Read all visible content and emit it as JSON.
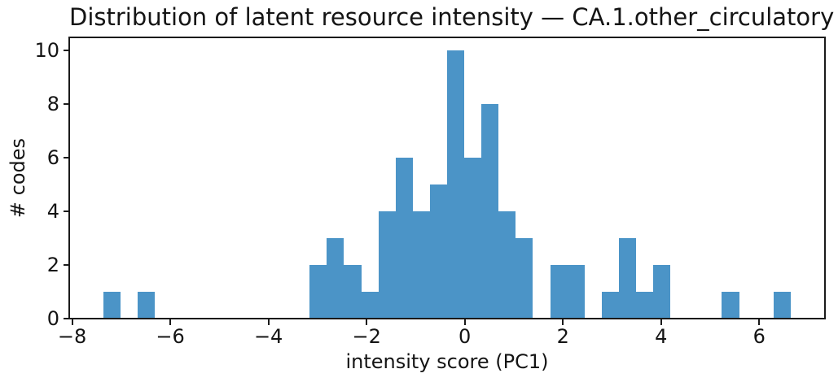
{
  "chart_data": {
    "type": "bar",
    "subtype": "histogram",
    "title": "Distribution of latent resource intensity — CA.1.other_circulatory",
    "xlabel": "intensity score (PC1)",
    "ylabel": "# codes",
    "bar_color": "#4b94c7",
    "bin_start": -7.36,
    "bin_width": 0.35,
    "counts": [
      1,
      0,
      1,
      0,
      0,
      0,
      0,
      0,
      0,
      0,
      0,
      0,
      2,
      3,
      2,
      1,
      4,
      6,
      4,
      5,
      10,
      6,
      8,
      4,
      3,
      0,
      2,
      2,
      0,
      1,
      3,
      1,
      2,
      0,
      0,
      0,
      1,
      0,
      0,
      1
    ],
    "total_codes": 73,
    "xlim": [
      -8.06,
      7.34
    ],
    "ylim": [
      0,
      10.5
    ],
    "xticks": [
      -8,
      -6,
      -4,
      -2,
      0,
      2,
      4,
      6
    ],
    "xtick_labels": [
      "−8",
      "−6",
      "−4",
      "−2",
      "0",
      "2",
      "4",
      "6"
    ],
    "yticks": [
      0,
      2,
      4,
      6,
      8,
      10
    ],
    "ytick_labels": [
      "0",
      "2",
      "4",
      "6",
      "8",
      "10"
    ],
    "grid": false,
    "legend": null,
    "spine_color": "#1a1a1a"
  }
}
